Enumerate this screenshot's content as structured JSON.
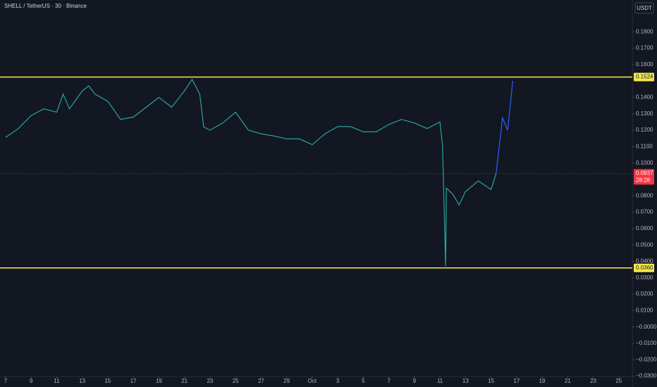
{
  "chart_data": {
    "type": "line",
    "title": "SHELL / TetherUS · 30 · Binance",
    "currency": "USDT",
    "xlim": [
      -0.44,
      49.06
    ],
    "xticks": [
      {
        "value": 0,
        "label": "7"
      },
      {
        "value": 2,
        "label": "9"
      },
      {
        "value": 4,
        "label": "11"
      },
      {
        "value": 6,
        "label": "13"
      },
      {
        "value": 8,
        "label": "15"
      },
      {
        "value": 10,
        "label": "17"
      },
      {
        "value": 12,
        "label": "19"
      },
      {
        "value": 14,
        "label": "21"
      },
      {
        "value": 16,
        "label": "23"
      },
      {
        "value": 18,
        "label": "25"
      },
      {
        "value": 20,
        "label": "27"
      },
      {
        "value": 22,
        "label": "29"
      },
      {
        "value": 24,
        "label": "Oct"
      },
      {
        "value": 26,
        "label": "3"
      },
      {
        "value": 28,
        "label": "5"
      },
      {
        "value": 30,
        "label": "7"
      },
      {
        "value": 32,
        "label": "9"
      },
      {
        "value": 34,
        "label": "11"
      },
      {
        "value": 36,
        "label": "13"
      },
      {
        "value": 38,
        "label": "15"
      },
      {
        "value": 40,
        "label": "17"
      },
      {
        "value": 42,
        "label": "19"
      },
      {
        "value": 44,
        "label": "21"
      },
      {
        "value": 46,
        "label": "23"
      },
      {
        "value": 48,
        "label": "25"
      }
    ],
    "ylim": [
      -0.0366,
      0.1994
    ],
    "yticks": [
      {
        "value": 0.18,
        "label": "0.1800"
      },
      {
        "value": 0.17,
        "label": "0.1700"
      },
      {
        "value": 0.16,
        "label": "0.1600"
      },
      {
        "value": 0.14,
        "label": "0.1400"
      },
      {
        "value": 0.13,
        "label": "0.1300"
      },
      {
        "value": 0.12,
        "label": "0.1200"
      },
      {
        "value": 0.11,
        "label": "0.1100"
      },
      {
        "value": 0.1,
        "label": "0.1000"
      },
      {
        "value": 0.08,
        "label": "0.0800"
      },
      {
        "value": 0.07,
        "label": "0.0700"
      },
      {
        "value": 0.06,
        "label": "0.0600"
      },
      {
        "value": 0.05,
        "label": "0.0500"
      },
      {
        "value": 0.04,
        "label": "0.0400"
      },
      {
        "value": 0.03,
        "label": "0.0300"
      },
      {
        "value": 0.02,
        "label": "0.0200"
      },
      {
        "value": 0.01,
        "label": "0.0100"
      },
      {
        "value": 0,
        "label": "−0.0000"
      },
      {
        "value": -0.01,
        "label": "−0.0100"
      },
      {
        "value": -0.02,
        "label": "−0.0200"
      },
      {
        "value": -0.03,
        "label": "−0.0300"
      }
    ],
    "series": [
      {
        "color": "#26a69a",
        "x": [
          0,
          1,
          2,
          3,
          4,
          4.5,
          5,
          6,
          6.5,
          7,
          8,
          9,
          10,
          11,
          12,
          13,
          14,
          14.6,
          15.2,
          15.5,
          16,
          17,
          18,
          19,
          20,
          21,
          22,
          23,
          24,
          25,
          26,
          27,
          28,
          29,
          30,
          31,
          32,
          33,
          34,
          34.2,
          34.45,
          34.5,
          35,
          35.5,
          36,
          37,
          38,
          38.4
        ],
        "values": [
          0.1156,
          0.121,
          0.129,
          0.133,
          0.131,
          0.142,
          0.133,
          0.144,
          0.147,
          0.142,
          0.1376,
          0.1266,
          0.128,
          0.134,
          0.14,
          0.134,
          0.144,
          0.151,
          0.142,
          0.122,
          0.12,
          0.1244,
          0.131,
          0.12,
          0.1178,
          0.1165,
          0.1147,
          0.1147,
          0.1112,
          0.1178,
          0.1222,
          0.1222,
          0.119,
          0.119,
          0.1235,
          0.1266,
          0.1244,
          0.121,
          0.125,
          0.111,
          0.037,
          0.0847,
          0.081,
          0.0745,
          0.0825,
          0.0891,
          0.0838,
          0.0937
        ]
      },
      {
        "color": "#2962ff",
        "x": [
          38.4,
          38.9,
          39.3,
          39.7
        ],
        "values": [
          0.0937,
          0.1275,
          0.12,
          0.15
        ]
      }
    ],
    "levels": [
      {
        "value": 0.1524,
        "label": "0.1524",
        "color": "#f5e94a"
      },
      {
        "value": 0.036,
        "label": "0.0360",
        "color": "#f5e94a"
      }
    ],
    "last_price": {
      "value": 0.0937,
      "label": "0.0937",
      "countdown": "28:28",
      "color": "#f23645"
    }
  }
}
